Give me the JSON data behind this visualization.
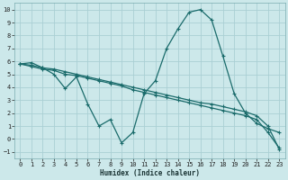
{
  "xlabel": "Humidex (Indice chaleur)",
  "bg_color": "#cce8ea",
  "grid_color": "#aacfd4",
  "line_color": "#1a6b6b",
  "xlim": [
    -0.5,
    23.5
  ],
  "ylim": [
    -1.5,
    10.5
  ],
  "xticks": [
    0,
    1,
    2,
    3,
    4,
    5,
    6,
    7,
    8,
    9,
    10,
    11,
    12,
    13,
    14,
    15,
    16,
    17,
    18,
    19,
    20,
    21,
    22,
    23
  ],
  "yticks": [
    -1,
    0,
    1,
    2,
    3,
    4,
    5,
    6,
    7,
    8,
    9,
    10
  ],
  "series": [
    {
      "x": [
        0,
        1,
        2,
        3,
        4,
        5,
        6,
        7,
        8,
        9,
        10,
        11,
        12,
        13,
        14,
        15,
        16,
        17,
        18,
        19,
        20,
        21,
        22,
        23
      ],
      "y": [
        5.8,
        5.9,
        5.5,
        5.0,
        3.9,
        4.8,
        2.7,
        1.0,
        1.5,
        -0.3,
        0.5,
        3.5,
        4.5,
        7.0,
        8.5,
        9.8,
        10.0,
        9.2,
        6.4,
        3.5,
        2.0,
        1.2,
        0.8,
        0.5
      ]
    },
    {
      "x": [
        0,
        1,
        2,
        3,
        4,
        5,
        6,
        7,
        8,
        9,
        10,
        11,
        12,
        13,
        14,
        15,
        16,
        17,
        18,
        19,
        20,
        21,
        22,
        23
      ],
      "y": [
        5.8,
        5.6,
        5.4,
        5.3,
        5.0,
        4.9,
        4.7,
        4.5,
        4.3,
        4.1,
        3.8,
        3.6,
        3.4,
        3.2,
        3.0,
        2.8,
        2.6,
        2.4,
        2.2,
        2.0,
        1.8,
        1.5,
        0.5,
        -0.7
      ]
    },
    {
      "x": [
        0,
        1,
        2,
        3,
        4,
        5,
        6,
        7,
        8,
        9,
        10,
        11,
        12,
        13,
        14,
        15,
        16,
        17,
        18,
        19,
        20,
        21,
        22,
        23
      ],
      "y": [
        5.8,
        5.7,
        5.5,
        5.4,
        5.2,
        5.0,
        4.8,
        4.6,
        4.4,
        4.2,
        4.0,
        3.8,
        3.6,
        3.4,
        3.2,
        3.0,
        2.8,
        2.7,
        2.5,
        2.3,
        2.1,
        1.8,
        1.0,
        -0.8
      ]
    }
  ]
}
